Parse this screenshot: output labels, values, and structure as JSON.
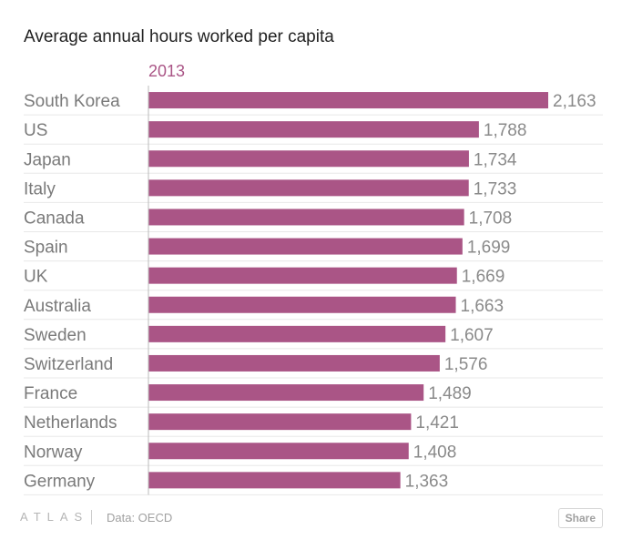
{
  "chart_data": {
    "type": "bar",
    "orientation": "horizontal",
    "title": "Average annual hours worked per capita",
    "categories": [
      "South Korea",
      "US",
      "Japan",
      "Italy",
      "Canada",
      "Spain",
      "UK",
      "Australia",
      "Sweden",
      "Switzerland",
      "France",
      "Netherlands",
      "Norway",
      "Germany"
    ],
    "series": [
      {
        "name": "2013",
        "color": "#aa5586",
        "values": [
          2163,
          1788,
          1734,
          1733,
          1708,
          1699,
          1669,
          1663,
          1607,
          1576,
          1489,
          1421,
          1408,
          1363
        ]
      }
    ],
    "value_labels": [
      "2,163",
      "1,788",
      "1,734",
      "1,733",
      "1,708",
      "1,699",
      "1,669",
      "1,663",
      "1,607",
      "1,576",
      "1,489",
      "1,421",
      "1,408",
      "1,363"
    ],
    "xlim": [
      0,
      2163
    ],
    "grid": true,
    "legend": "top-left"
  },
  "footer": {
    "logo": "ATLAS",
    "source": "Data: OECD",
    "share_label": "Share"
  },
  "colors": {
    "bar": "#aa5586",
    "series_label": "#aa5586",
    "gridline": "#e8e8e8",
    "axis": "#bbbbbb"
  }
}
